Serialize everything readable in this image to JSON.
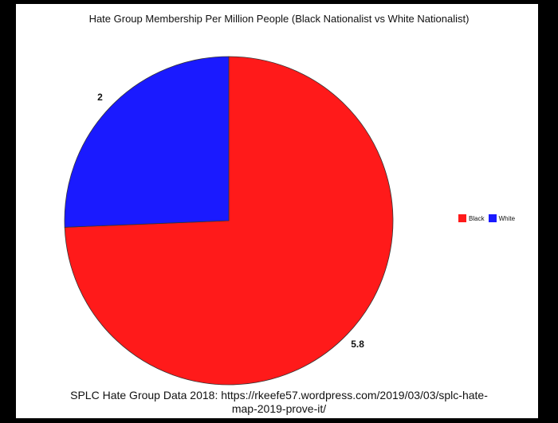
{
  "chart_data": {
    "type": "pie",
    "title": "Hate Group Membership Per Million People (Black Nationalist vs White Nationalist)",
    "slices": [
      {
        "label": "Black",
        "value": 5.8,
        "data_label": "5.8",
        "color": "#ff1a1a"
      },
      {
        "label": "White",
        "value": 2,
        "data_label": "2",
        "color": "#1a1aff"
      }
    ],
    "legend": {
      "position": "right",
      "entries": [
        "Black",
        "White"
      ]
    },
    "source": "SPLC Hate Group Data 2018: https://rkeefe57.wordpress.com/2019/03/03/splc-hate-map-2019-prove-it/"
  }
}
